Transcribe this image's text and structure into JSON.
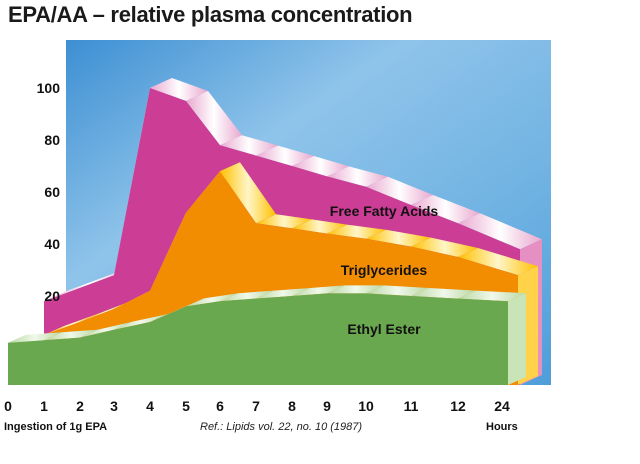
{
  "title": "EPA/AA – relative plasma concentration",
  "chart_data": {
    "type": "area",
    "title": "EPA/AA – relative plasma concentration",
    "x_ticks": [
      "0",
      "1",
      "2",
      "3",
      "4",
      "5",
      "6",
      "7",
      "8",
      "9",
      "10",
      "11",
      "12",
      "24"
    ],
    "x_unit_label": "Hours",
    "x_start_label": "Ingestion of 1g EPA",
    "y_ticks": [
      20,
      40,
      60,
      80,
      100
    ],
    "ylim": [
      0,
      115
    ],
    "reference": "Ref.: Lipids vol. 22, no. 10 (1987)",
    "series": [
      {
        "name": "Free Fatty Acids",
        "color": "#cc3d95",
        "x": [
          1,
          3,
          4,
          5,
          6,
          7,
          8,
          9,
          10,
          11,
          12,
          24
        ],
        "values": [
          18,
          28,
          100,
          95,
          78,
          74,
          70,
          66,
          62,
          55,
          48,
          38
        ]
      },
      {
        "name": "Triglycerides",
        "color": "#f28c00",
        "x": [
          1,
          2,
          3,
          4,
          5,
          6,
          7,
          8,
          9,
          10,
          11,
          12,
          24
        ],
        "values": [
          5,
          10,
          15,
          22,
          52,
          68,
          48,
          46,
          44,
          42,
          39,
          35,
          28
        ]
      },
      {
        "name": "Ethyl Ester",
        "color": "#6aa84f",
        "x": [
          0,
          1,
          2,
          3,
          4,
          5,
          6,
          7,
          8,
          9,
          10,
          11,
          12,
          24
        ],
        "values": [
          2,
          3,
          4,
          7,
          10,
          16,
          18,
          19,
          20,
          21,
          21,
          20,
          19,
          18
        ]
      }
    ]
  }
}
